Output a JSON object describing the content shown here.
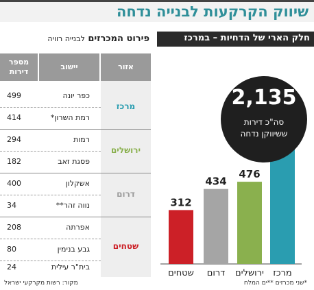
{
  "title": "שיווק הקרקעות לבנייה נדחה",
  "subtitle_right": "חלק הארי של הדחיות – במרכז",
  "subtitle_left": "פירוט המכרזים",
  "subtitle_left_small": "לבנייה רוויה",
  "table": {
    "headers": {
      "area": "אזור",
      "town": "יישוב",
      "count": "מספר דירות"
    },
    "rows": [
      {
        "town": "כפר יונה",
        "count": "499"
      },
      {
        "town": "רמת השרון*",
        "count": "414"
      },
      {
        "town": "רמות",
        "count": "294"
      },
      {
        "town": "פסגת זאב",
        "count": "182"
      },
      {
        "town": "אשקלון",
        "count": "400"
      },
      {
        "town": "נווה זהר**",
        "count": "34"
      },
      {
        "town": "אפרתה",
        "count": "208"
      },
      {
        "town": "גבע בנימין",
        "count": "80"
      },
      {
        "town": "בית\"ר עילית",
        "count": "24"
      }
    ],
    "regions": [
      {
        "label": "מרכז",
        "color": "#2a9db0"
      },
      {
        "label": "ירושלים",
        "color": "#8ab04e"
      },
      {
        "label": "דרום",
        "color": "#9b9b9b"
      },
      {
        "label": "שטחים",
        "color": "#cc2027"
      }
    ]
  },
  "bubble": {
    "value": "2,135",
    "line1": "סה\"כ דירות",
    "line2": "ששיווקן נדחה"
  },
  "chart_data": {
    "type": "bar",
    "categories": [
      "מרכז",
      "ירושלים",
      "דרום",
      "שטחים"
    ],
    "values": [
      913,
      476,
      434,
      312
    ],
    "colors": [
      "#2a9db0",
      "#8ab04e",
      "#a5a5a5",
      "#cc2027"
    ],
    "ylim": [
      0,
      913
    ],
    "grid": false
  },
  "footnote_left": "מקור: רשות מקרקעי ישראל",
  "footnote_right": "*שני מכרזים **ים המלח"
}
